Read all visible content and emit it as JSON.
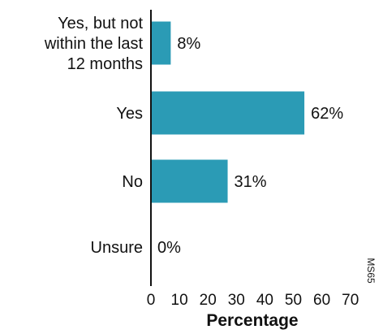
{
  "chart_data": {
    "type": "bar",
    "orientation": "horizontal",
    "categories": [
      [
        "Yes, but not",
        "within the last",
        "12 months"
      ],
      [
        "Yes"
      ],
      [
        "No"
      ],
      [
        "Unsure"
      ]
    ],
    "values": [
      8,
      62,
      31,
      0
    ],
    "value_labels": [
      "8%",
      "62%",
      "31%",
      "0%"
    ],
    "xlabel": "Percentage",
    "xlim": [
      0,
      70
    ],
    "xticks": [
      "0",
      "10",
      "20",
      "30",
      "40",
      "50",
      "60",
      "70"
    ],
    "bar_color": "#2b9bb5",
    "grid": false,
    "figure_code": "MS65"
  }
}
